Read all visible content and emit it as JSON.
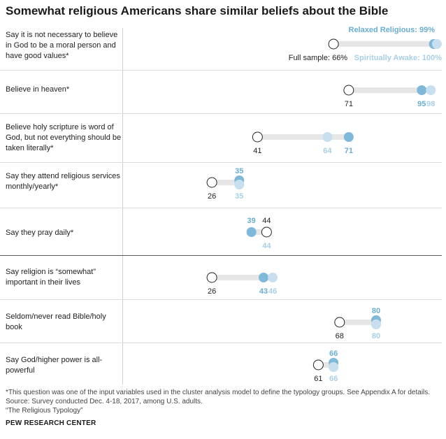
{
  "title": "Somewhat religious Americans share similar beliefs about the Bible",
  "colors": {
    "full_sample": "#ffffff",
    "relaxed_religious": "#7fb8d8",
    "spiritually_awake": "#c7dfee",
    "bar": "#e6e6e6",
    "relaxed_text": "#6aaed2",
    "awake_text": "#a9cfe5"
  },
  "chart_data": {
    "type": "dot",
    "xlim": [
      0,
      100
    ],
    "series": [
      {
        "name": "Full sample",
        "key": "full"
      },
      {
        "name": "Relaxed Religious",
        "key": "relaxed"
      },
      {
        "name": "Spiritually Awake",
        "key": "awake"
      }
    ],
    "rows": [
      {
        "label": "Say it is not necessary to believe in God to be a moral person and have good values*",
        "full": 66,
        "relaxed": 99,
        "awake": 100,
        "full_label": "Full sample: 66%",
        "relaxed_label": "Relaxed Religious: 99%",
        "awake_label": "Spiritually Awake: 100%"
      },
      {
        "label": "Believe in heaven*",
        "full": 71,
        "relaxed": 95,
        "awake": 98,
        "full_label": "71",
        "relaxed_label": "95",
        "awake_label": "98"
      },
      {
        "label": "Believe holy scripture is word of God, but not everything should be taken literally*",
        "full": 41,
        "relaxed": 71,
        "awake": 64,
        "full_label": "41",
        "relaxed_label": "71",
        "awake_label": "64"
      },
      {
        "label": "Say they attend religious services monthly/yearly*",
        "full": 26,
        "relaxed": 35,
        "awake": 35,
        "full_label": "26",
        "relaxed_label": "35",
        "awake_label": "35"
      },
      {
        "label": "Say they pray daily*",
        "full": 44,
        "relaxed": 39,
        "awake": 44,
        "full_label": "44",
        "relaxed_label": "39",
        "awake_label": "44"
      },
      {
        "label": "Say religion is “somewhat” important in their lives",
        "full": 26,
        "relaxed": 43,
        "awake": 46,
        "full_label": "26",
        "relaxed_label": "43",
        "awake_label": "46"
      },
      {
        "label": "Seldom/never read Bible/holy book",
        "full": 68,
        "relaxed": 80,
        "awake": 80,
        "full_label": "68",
        "relaxed_label": "80",
        "awake_label": "80"
      },
      {
        "label": "Say God/higher power is all-powerful",
        "full": 61,
        "relaxed": 66,
        "awake": 66,
        "full_label": "61",
        "relaxed_label": "66",
        "awake_label": "66"
      }
    ]
  },
  "footnotes": {
    "note": "*This question was one of the input variables used in the cluster analysis model to define the typology groups. See Appendix A for details.",
    "source": "Source: Survey conducted Dec. 4-18, 2017, among U.S. adults.",
    "report": "“The Religious Typology”",
    "brand": "PEW RESEARCH CENTER"
  }
}
